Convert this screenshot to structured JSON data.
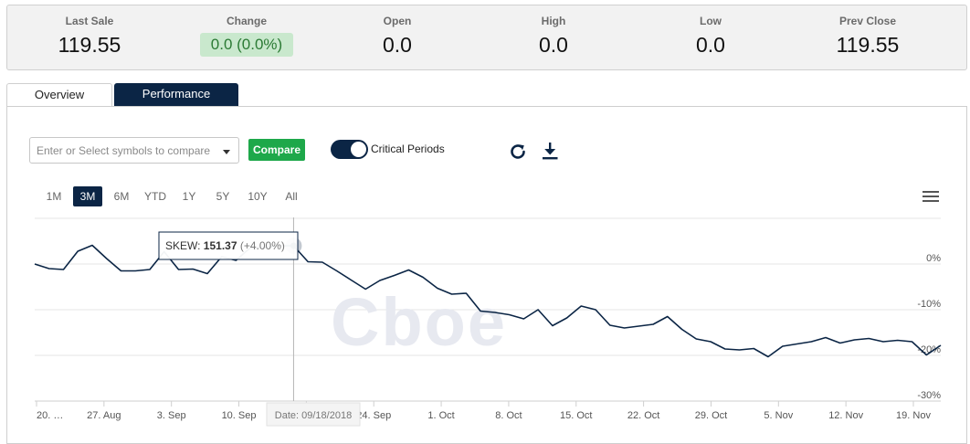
{
  "summary": {
    "last_sale_label": "Last Sale",
    "last_sale": "119.55",
    "change_label": "Change",
    "change": "0.0 (0.0%)",
    "open_label": "Open",
    "open": "0.0",
    "high_label": "High",
    "high": "0.0",
    "low_label": "Low",
    "low": "0.0",
    "prev_close_label": "Prev Close",
    "prev_close": "119.55"
  },
  "tabs": {
    "overview": "Overview",
    "performance": "Performance"
  },
  "toolbar": {
    "compare_placeholder": "Enter or Select symbols to compare",
    "compare_button": "Compare",
    "critical_periods_label": "Critical Periods",
    "critical_periods_on": true,
    "refresh_icon": "refresh-icon",
    "download_icon": "download-icon"
  },
  "ranges": {
    "items": [
      "1M",
      "3M",
      "6M",
      "YTD",
      "1Y",
      "5Y",
      "10Y",
      "All"
    ],
    "active": "3M"
  },
  "watermark": "Cboe",
  "colors": {
    "line": "#0b2545",
    "accent": "#0b2545",
    "compare": "#1ea84a",
    "positive_bg": "#c9e8cd"
  },
  "chart_data": {
    "type": "line",
    "series": [
      {
        "name": "SKEW",
        "values": [
          0,
          -1,
          -1.2,
          2.8,
          4.1,
          1.2,
          -1.5,
          -1.5,
          -1.2,
          2.7,
          -1.2,
          -1.1,
          -2.1,
          1.6,
          0.8,
          3.6,
          3.6,
          4.0,
          4.0,
          0.5,
          0.4,
          -1.5,
          -3.5,
          -5.5,
          -3.6,
          -2.5,
          -1.3,
          -2.9,
          -5.3,
          -6.6,
          -6.4,
          -10.3,
          -10.6,
          -11.1,
          -12.0,
          -10.0,
          -13.5,
          -11.8,
          -9.2,
          -10.0,
          -13.4,
          -14.0,
          -13.6,
          -13.2,
          -11.5,
          -14.3,
          -16.4,
          -17.0,
          -18.6,
          -18.8,
          -18.5,
          -20.3,
          -18.0,
          -17.5,
          -17.0,
          -16.1,
          -17.3,
          -16.6,
          -16.3,
          -17.0,
          -16.7,
          -17.0,
          -19.9,
          -17.8
        ]
      }
    ],
    "x_ticks": [
      "20. …",
      "27. Aug",
      "3. Sep",
      "10. Sep",
      "17. Sep",
      "24. Sep",
      "1. Oct",
      "8. Oct",
      "15. Oct",
      "22. Oct",
      "29. Oct",
      "5. Nov",
      "12. Nov",
      "19. Nov"
    ],
    "y_ticks": [
      "0%",
      "-10%",
      "-20%",
      "-30%"
    ],
    "y_tick_values": [
      0,
      -10,
      -20,
      -30
    ],
    "ylim": [
      -30,
      10
    ],
    "grid": true,
    "tooltip": {
      "series_label": "SKEW:",
      "value": "151.37",
      "change": "(+4.00%)",
      "date_label": "Date: 09/18/2018",
      "index": 18
    }
  }
}
